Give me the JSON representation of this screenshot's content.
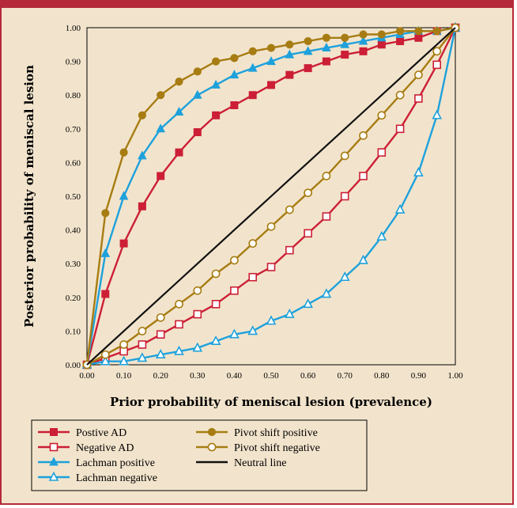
{
  "colors": {
    "frame_border": "#b5293a",
    "background": "#f2e4cc",
    "red": "#cc1f36",
    "gold": "#a77c12",
    "blue": "#1ea1dc",
    "black": "#111111"
  },
  "chart_data": {
    "type": "line",
    "xlabel": "Prior probability of meniscal lesion (prevalence)",
    "ylabel": "Posterior probability of meniscal lesion",
    "xlim": [
      0,
      1
    ],
    "ylim": [
      0,
      1
    ],
    "xticks": [
      "0.00",
      "0.10",
      "0.20",
      "0.30",
      "0.40",
      "0.50",
      "0.60",
      "0.70",
      "0.80",
      "0.90",
      "1.00"
    ],
    "yticks": [
      "0.00",
      "0.10",
      "0.20",
      "0.30",
      "0.40",
      "0.50",
      "0.60",
      "0.70",
      "0.80",
      "0.90",
      "1.00"
    ],
    "x": [
      0,
      0.05,
      0.1,
      0.15,
      0.2,
      0.25,
      0.3,
      0.35,
      0.4,
      0.45,
      0.5,
      0.55,
      0.6,
      0.65,
      0.7,
      0.75,
      0.8,
      0.85,
      0.9,
      0.95,
      1.0
    ],
    "legend_position": "bottom",
    "series": [
      {
        "name": "Postive AD",
        "color": "#cc1f36",
        "marker": "square",
        "filled": true,
        "values": [
          0,
          0.21,
          0.36,
          0.47,
          0.56,
          0.63,
          0.69,
          0.74,
          0.77,
          0.8,
          0.83,
          0.86,
          0.88,
          0.9,
          0.92,
          0.93,
          0.95,
          0.96,
          0.97,
          0.99,
          1.0
        ]
      },
      {
        "name": "Negative AD",
        "color": "#cc1f36",
        "marker": "square",
        "filled": false,
        "values": [
          0,
          0.02,
          0.04,
          0.06,
          0.09,
          0.12,
          0.15,
          0.18,
          0.22,
          0.26,
          0.29,
          0.34,
          0.39,
          0.44,
          0.5,
          0.56,
          0.63,
          0.7,
          0.79,
          0.89,
          1.0
        ]
      },
      {
        "name": "Lachman positive",
        "color": "#1ea1dc",
        "marker": "triangle",
        "filled": true,
        "values": [
          0,
          0.33,
          0.5,
          0.62,
          0.7,
          0.75,
          0.8,
          0.83,
          0.86,
          0.88,
          0.9,
          0.92,
          0.93,
          0.94,
          0.95,
          0.96,
          0.97,
          0.98,
          0.99,
          0.99,
          1.0
        ]
      },
      {
        "name": "Lachman negative",
        "color": "#1ea1dc",
        "marker": "triangle",
        "filled": false,
        "values": [
          0,
          0.01,
          0.01,
          0.02,
          0.03,
          0.04,
          0.05,
          0.07,
          0.09,
          0.1,
          0.13,
          0.15,
          0.18,
          0.21,
          0.26,
          0.31,
          0.38,
          0.46,
          0.57,
          0.74,
          1.0
        ]
      },
      {
        "name": "Pivot shift positive",
        "color": "#a77c12",
        "marker": "circle",
        "filled": true,
        "values": [
          0,
          0.45,
          0.63,
          0.74,
          0.8,
          0.84,
          0.87,
          0.9,
          0.91,
          0.93,
          0.94,
          0.95,
          0.96,
          0.97,
          0.97,
          0.98,
          0.98,
          0.99,
          0.99,
          0.99,
          1.0
        ]
      },
      {
        "name": "Pivot shift negative",
        "color": "#a77c12",
        "marker": "circle",
        "filled": false,
        "values": [
          0,
          0.03,
          0.06,
          0.1,
          0.14,
          0.18,
          0.22,
          0.27,
          0.31,
          0.36,
          0.41,
          0.46,
          0.51,
          0.56,
          0.62,
          0.68,
          0.74,
          0.8,
          0.86,
          0.93,
          1.0
        ]
      },
      {
        "name": "Neutral line",
        "color": "#111111",
        "marker": "none",
        "filled": false,
        "values": [
          0,
          0.05,
          0.1,
          0.15,
          0.2,
          0.25,
          0.3,
          0.35,
          0.4,
          0.45,
          0.5,
          0.55,
          0.6,
          0.65,
          0.7,
          0.75,
          0.8,
          0.85,
          0.9,
          0.95,
          1.0
        ]
      }
    ],
    "legend_order": [
      0,
      4,
      1,
      5,
      2,
      6,
      3
    ]
  }
}
